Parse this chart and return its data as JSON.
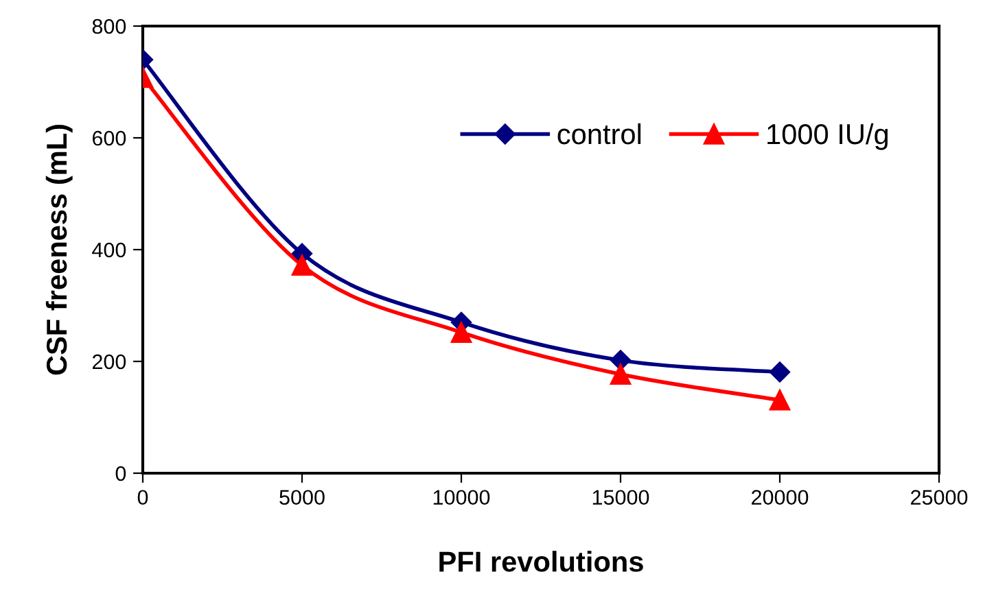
{
  "chart_data": {
    "type": "line",
    "xlabel": "PFI revolutions",
    "ylabel": "CSF freeness (mL)",
    "x": [
      0,
      5000,
      10000,
      15000,
      20000
    ],
    "series": [
      {
        "name": "control",
        "color": "#000080",
        "marker": "diamond",
        "values": [
          740,
          393,
          270,
          202,
          181
        ]
      },
      {
        "name": "1000 IU/g",
        "color": "#ff0000",
        "marker": "triangle",
        "values": [
          708,
          372,
          252,
          177,
          131
        ]
      }
    ],
    "xlim": [
      0,
      25000
    ],
    "xticks": [
      0,
      5000,
      10000,
      15000,
      20000,
      25000
    ],
    "ylim": [
      0,
      800
    ],
    "yticks": [
      0,
      200,
      400,
      600,
      800
    ],
    "grid": false,
    "legend": "top right",
    "line_style": "solid"
  }
}
